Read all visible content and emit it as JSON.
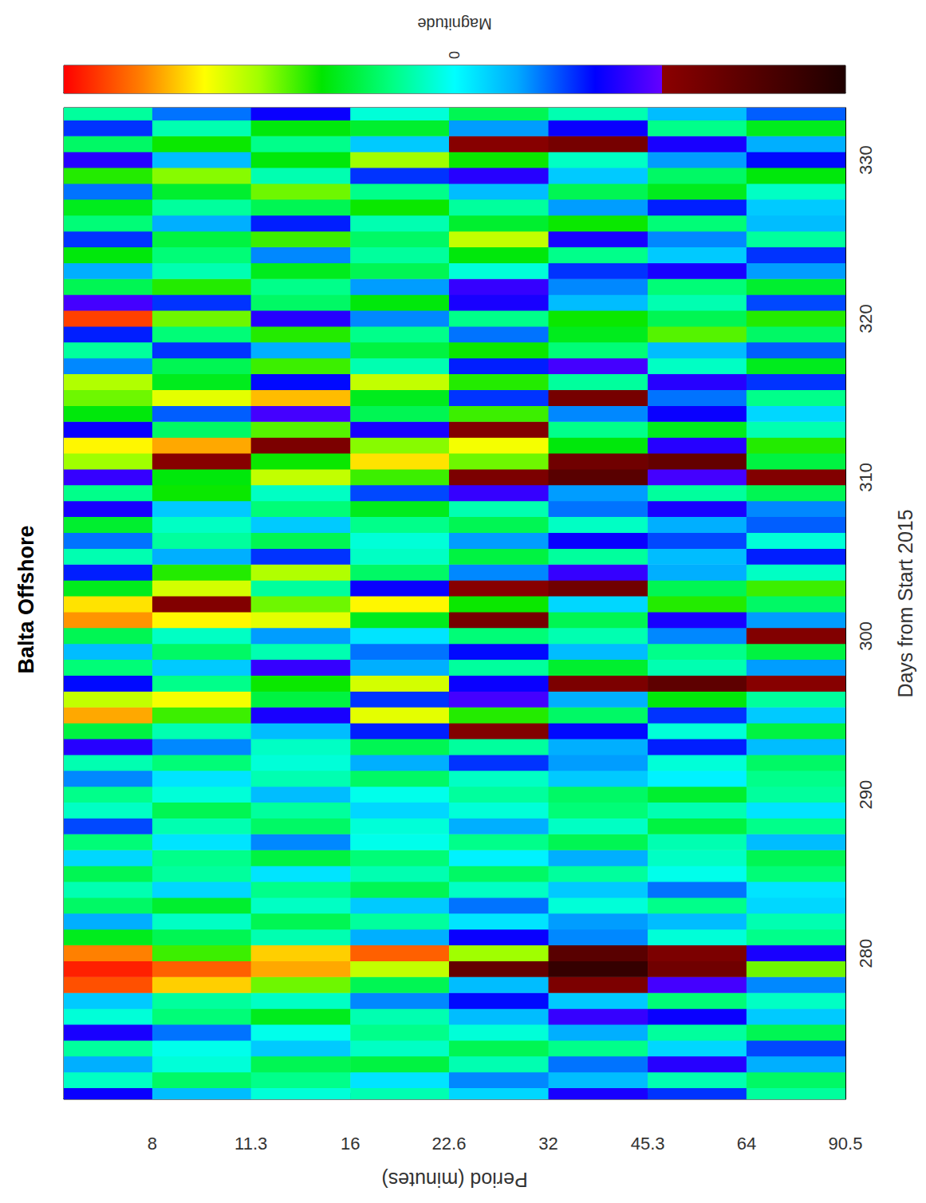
{
  "chart_data": {
    "type": "heatmap",
    "title": "Balta Offshore",
    "x_label": "Days from Start 2015",
    "y_label": "Period (minutes)",
    "xlim": [
      270.8,
      333.3
    ],
    "xticks": [
      280,
      290,
      300,
      310,
      320,
      330
    ],
    "ylim": [
      5.87,
      90.5
    ],
    "yticks": [
      8,
      11.3,
      16,
      22.6,
      32,
      45.3,
      64,
      90.5
    ],
    "log": "y",
    "grid": false,
    "colorbar_label": "Magnitude",
    "clim": [
      -4,
      4
    ],
    "cticks": [
      0
    ],
    "period_bins": [
      5.87,
      8,
      11.3,
      16,
      22.6,
      32,
      45.3,
      64,
      90.5
    ],
    "x": [
      271,
      272,
      273,
      274,
      275,
      276,
      277,
      278,
      279,
      280,
      281,
      282,
      283,
      284,
      285,
      286,
      287,
      288,
      289,
      290,
      291,
      292,
      293,
      294,
      295,
      296,
      297,
      298,
      299,
      300,
      301,
      302,
      303,
      304,
      305,
      306,
      307,
      308,
      309,
      310,
      311,
      312,
      313,
      314,
      315,
      316,
      317,
      318,
      319,
      320,
      321,
      322,
      323,
      324,
      325,
      326,
      327,
      328,
      329,
      330,
      331,
      332,
      333
    ],
    "values": [
      [
        -1.5,
        -0.5,
        0.2,
        0.4,
        -0.3,
        -1.6,
        -1.2,
        0.5
      ],
      [
        0.3,
        0.8,
        0.6,
        -0.2,
        -0.8,
        -0.5,
        0.4,
        0.8
      ],
      [
        -0.6,
        0.2,
        0.9,
        1.0,
        0.4,
        -0.9,
        -1.7,
        -0.6
      ],
      [
        0.5,
        0.1,
        -0.4,
        0.3,
        0.9,
        0.6,
        -0.3,
        -1.1
      ],
      [
        -1.6,
        -0.9,
        0.1,
        0.6,
        0.2,
        -0.6,
        0.5,
        0.9
      ],
      [
        0.2,
        0.7,
        1.2,
        0.4,
        -0.5,
        -1.8,
        -1.5,
        -0.4
      ],
      [
        -0.4,
        0.5,
        0.3,
        -0.8,
        -1.4,
        -0.4,
        0.7,
        0.3
      ],
      [
        3.5,
        2.8,
        1.8,
        0.9,
        -0.5,
        -2.4,
        -1.9,
        -0.8
      ],
      [
        3.8,
        3.4,
        3.0,
        2.2,
        -2.8,
        -3.6,
        -2.6,
        1.8
      ],
      [
        3.2,
        1.6,
        2.8,
        3.4,
        2.0,
        -3.0,
        -2.4,
        -1.6
      ],
      [
        1.2,
        0.9,
        0.4,
        -0.6,
        -1.5,
        -0.8,
        0.2,
        0.6
      ],
      [
        -0.6,
        0.3,
        0.9,
        0.5,
        -0.2,
        -0.7,
        -0.5,
        0.4
      ],
      [
        0.8,
        1.1,
        0.3,
        -0.4,
        -0.9,
        0.2,
        0.6,
        -0.3
      ],
      [
        0.4,
        -0.3,
        0.6,
        0.9,
        0.3,
        -0.4,
        -0.9,
        -0.2
      ],
      [
        0.9,
        0.5,
        -0.2,
        0.4,
        0.8,
        0.5,
        0.1,
        0.7
      ],
      [
        -0.3,
        0.6,
        1.0,
        0.7,
        -0.1,
        -0.6,
        0.3,
        0.9
      ],
      [
        0.7,
        -0.2,
        -0.8,
        0.1,
        0.6,
        0.9,
        0.4,
        -0.5
      ],
      [
        -1.1,
        0.4,
        0.8,
        0.2,
        -0.6,
        0.3,
        1.0,
        0.6
      ],
      [
        0.3,
        0.9,
        0.5,
        -0.3,
        0.2,
        0.7,
        0.4,
        -0.2
      ],
      [
        0.6,
        0.2,
        -0.5,
        0.1,
        0.5,
        0.8,
        1.1,
        0.5
      ],
      [
        -0.8,
        -0.2,
        0.4,
        0.8,
        0.3,
        -0.4,
        -0.1,
        0.6
      ],
      [
        0.4,
        0.7,
        0.2,
        -0.6,
        -1.2,
        -0.7,
        0.2,
        0.8
      ],
      [
        -1.7,
        -0.8,
        0.3,
        0.9,
        0.5,
        -0.6,
        -1.3,
        -0.5
      ],
      [
        1.0,
        0.4,
        -0.5,
        -1.3,
        -2.3,
        -1.4,
        0.2,
        1.0
      ],
      [
        3.0,
        1.6,
        -1.6,
        2.4,
        1.5,
        0.8,
        -1.2,
        -0.4
      ],
      [
        2.2,
        2.5,
        1.0,
        -1.2,
        -1.9,
        -0.6,
        1.3,
        0.5
      ],
      [
        -1.4,
        0.6,
        1.4,
        2.3,
        -1.5,
        -2.4,
        -2.9,
        -2.2
      ],
      [
        0.7,
        -0.4,
        -1.8,
        -0.6,
        0.5,
        1.1,
        0.4,
        -0.7
      ],
      [
        -0.5,
        0.8,
        0.4,
        -0.9,
        -1.4,
        -0.5,
        0.6,
        1.0
      ],
      [
        0.9,
        0.3,
        -0.7,
        -0.2,
        0.7,
        0.4,
        -0.8,
        -2.3
      ],
      [
        3.1,
        2.6,
        2.4,
        1.2,
        -2.5,
        0.9,
        -1.6,
        -0.7
      ],
      [
        2.7,
        -2.3,
        1.8,
        2.6,
        1.4,
        -0.3,
        1.5,
        0.8
      ],
      [
        1.2,
        2.3,
        0.5,
        -1.5,
        -2.2,
        -2.6,
        0.9,
        1.6
      ],
      [
        -1.3,
        1.5,
        2.1,
        0.8,
        -0.8,
        -1.8,
        -0.6,
        0.3
      ],
      [
        0.4,
        -0.6,
        -1.2,
        0.3,
        1.0,
        0.5,
        -0.5,
        -1.3
      ],
      [
        -0.9,
        0.5,
        0.9,
        0.2,
        -0.7,
        -1.5,
        -1.1,
        0.2
      ],
      [
        1.1,
        0.3,
        -0.4,
        0.6,
        0.9,
        0.3,
        -0.6,
        -1.0
      ],
      [
        -1.6,
        -0.4,
        0.7,
        1.2,
        0.4,
        -0.9,
        -1.6,
        -0.8
      ],
      [
        0.6,
        1.4,
        0.3,
        -1.1,
        -1.8,
        -0.7,
        0.5,
        0.9
      ],
      [
        -1.8,
        1.3,
        2.2,
        1.6,
        -2.4,
        -3.0,
        -1.9,
        -2.3
      ],
      [
        2.0,
        -2.2,
        1.4,
        2.7,
        1.8,
        -2.6,
        -2.8,
        1.0
      ],
      [
        2.6,
        3.0,
        -2.4,
        1.9,
        2.5,
        1.3,
        -1.7,
        1.5
      ],
      [
        -1.5,
        0.8,
        1.7,
        -1.6,
        -2.3,
        0.6,
        1.2,
        0.4
      ],
      [
        1.3,
        -1.0,
        -1.9,
        0.9,
        1.6,
        -0.8,
        -1.5,
        -0.3
      ],
      [
        1.8,
        2.4,
        2.9,
        1.2,
        -1.2,
        -2.5,
        -0.9,
        0.6
      ],
      [
        2.1,
        1.2,
        -1.4,
        2.2,
        1.5,
        0.5,
        -1.7,
        -1.2
      ],
      [
        -0.8,
        0.9,
        1.6,
        0.4,
        -1.3,
        -1.9,
        0.3,
        1.2
      ],
      [
        0.5,
        -1.2,
        -0.6,
        1.0,
        1.4,
        0.7,
        -0.5,
        -1.0
      ],
      [
        -1.3,
        0.7,
        1.5,
        0.6,
        -0.9,
        1.2,
        1.7,
        0.8
      ],
      [
        3.6,
        1.8,
        -1.7,
        -0.8,
        0.6,
        1.4,
        0.9,
        1.5
      ],
      [
        -1.9,
        -1.2,
        0.8,
        1.3,
        -1.6,
        -0.5,
        0.4,
        -1.1
      ],
      [
        0.9,
        1.5,
        0.6,
        -0.7,
        -1.8,
        -0.8,
        0.7,
        1.1
      ],
      [
        -0.6,
        0.4,
        1.2,
        0.9,
        0.2,
        -1.2,
        -1.6,
        -0.7
      ],
      [
        1.3,
        0.7,
        -0.8,
        0.5,
        1.3,
        0.6,
        -0.4,
        -1.2
      ],
      [
        -1.2,
        1.0,
        1.6,
        0.8,
        2.2,
        -1.6,
        -0.8,
        0.5
      ],
      [
        0.7,
        -0.6,
        -1.3,
        0.4,
        1.1,
        1.4,
        0.7,
        -0.5
      ],
      [
        1.2,
        0.5,
        0.9,
        1.4,
        0.5,
        -0.7,
        -1.3,
        -0.4
      ],
      [
        -0.9,
        1.1,
        1.8,
        0.6,
        -0.5,
        0.9,
        1.2,
        0.3
      ],
      [
        1.5,
        1.9,
        0.4,
        -1.2,
        -1.7,
        -0.4,
        0.8,
        1.3
      ],
      [
        -1.7,
        -0.5,
        1.3,
        2.0,
        1.4,
        0.3,
        -0.7,
        -1.4
      ],
      [
        0.8,
        1.4,
        0.6,
        -0.4,
        -2.2,
        -2.5,
        -1.6,
        -0.6
      ],
      [
        -1.2,
        0.4,
        1.3,
        1.1,
        -0.7,
        -1.5,
        0.6,
        1.2
      ],
      [
        0.5,
        -0.9,
        -1.5,
        0.2,
        0.9,
        0.4,
        -0.5,
        -1.0
      ]
    ]
  }
}
